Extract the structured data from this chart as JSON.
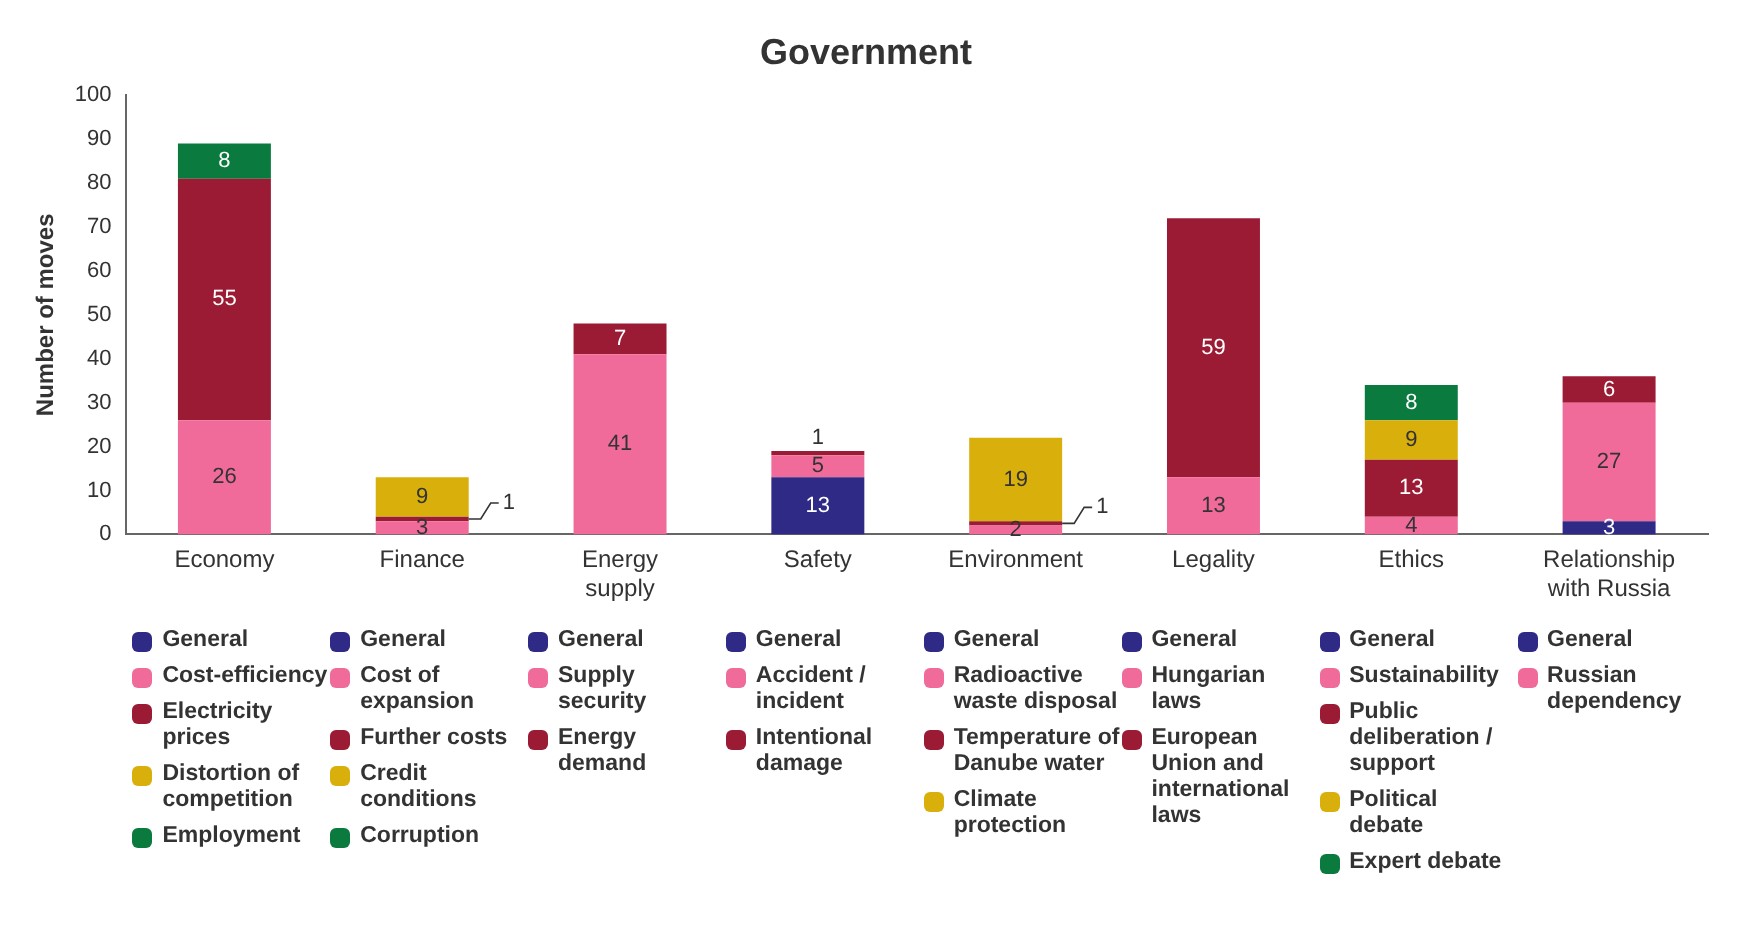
{
  "chart_data": {
    "type": "bar",
    "title": "Government",
    "ylabel": "Number of moves",
    "categories": [
      "Economy",
      "Finance",
      "Energy supply",
      "Safety",
      "Environment",
      "Legality",
      "Ethics",
      "Relationship with Russia"
    ],
    "stacked": true,
    "ylim": [
      0,
      100
    ],
    "yticks": [
      0,
      10,
      20,
      30,
      40,
      50,
      60,
      70,
      80,
      90,
      100
    ],
    "grid": false,
    "legend": "bottom",
    "series": [
      {
        "name": "General",
        "color": "#2e2a85",
        "values": [
          0,
          null,
          null,
          null,
          null,
          null,
          null,
          null
        ],
        "value_labels": [
          null,
          null,
          null,
          null,
          null,
          null,
          null,
          null
        ]
      },
      {
        "name": "Cost-efficiency",
        "color": "#f06b9a",
        "values": [
          26,
          null,
          null,
          null,
          null,
          null,
          null,
          null
        ],
        "value_labels": [
          "26",
          null,
          null,
          null,
          null,
          null,
          null,
          null
        ]
      },
      {
        "name": "Electricity prices",
        "color": "#9b1b35",
        "values": [
          55,
          null,
          null,
          null,
          null,
          null,
          null,
          null
        ],
        "value_labels": [
          "55",
          null,
          null,
          null,
          null,
          null,
          null,
          null
        ]
      },
      {
        "name": "Distortion of competition",
        "color": "#d9b00b",
        "values": [
          0,
          null,
          null,
          null,
          null,
          null,
          null,
          null
        ],
        "value_labels": [
          null,
          null,
          null,
          null,
          null,
          null,
          null,
          null
        ]
      },
      {
        "name": "Employment",
        "color": "#0b7a3e",
        "values": [
          8,
          null,
          null,
          null,
          null,
          null,
          null,
          null
        ],
        "value_labels": [
          "8",
          null,
          null,
          null,
          null,
          null,
          null,
          null
        ]
      },
      {
        "name": "General",
        "color": "#2e2a85",
        "values": [
          null,
          0,
          null,
          null,
          null,
          null,
          null,
          null
        ],
        "value_labels": [
          null,
          null,
          null,
          null,
          null,
          null,
          null,
          null
        ]
      },
      {
        "name": "Cost of expansion",
        "color": "#f06b9a",
        "values": [
          null,
          3,
          null,
          null,
          null,
          null,
          null,
          null
        ],
        "value_labels": [
          null,
          "3",
          null,
          null,
          null,
          null,
          null,
          null
        ]
      },
      {
        "name": "Further costs",
        "color": "#9b1b35",
        "values": [
          null,
          1,
          null,
          null,
          null,
          null,
          null,
          null
        ],
        "value_labels": [
          null,
          "1",
          null,
          null,
          null,
          null,
          null,
          null
        ]
      },
      {
        "name": "Credit conditions",
        "color": "#d9b00b",
        "values": [
          null,
          9,
          null,
          null,
          null,
          null,
          null,
          null
        ],
        "value_labels": [
          null,
          "9",
          null,
          null,
          null,
          null,
          null,
          null
        ]
      },
      {
        "name": "Corruption",
        "color": "#0b7a3e",
        "values": [
          null,
          0,
          null,
          null,
          null,
          null,
          null,
          null
        ],
        "value_labels": [
          null,
          null,
          null,
          null,
          null,
          null,
          null,
          null
        ]
      },
      {
        "name": "General",
        "color": "#2e2a85",
        "values": [
          null,
          null,
          0,
          null,
          null,
          null,
          null,
          null
        ],
        "value_labels": [
          null,
          null,
          null,
          null,
          null,
          null,
          null,
          null
        ]
      },
      {
        "name": "Supply security",
        "color": "#f06b9a",
        "values": [
          null,
          null,
          41,
          null,
          null,
          null,
          null,
          null
        ],
        "value_labels": [
          null,
          null,
          "41",
          null,
          null,
          null,
          null,
          null
        ]
      },
      {
        "name": "Energy demand",
        "color": "#9b1b35",
        "values": [
          null,
          null,
          7,
          null,
          null,
          null,
          null,
          null
        ],
        "value_labels": [
          null,
          null,
          "7",
          null,
          null,
          null,
          null,
          null
        ]
      },
      {
        "name": "General",
        "color": "#2e2a85",
        "values": [
          null,
          null,
          null,
          13,
          null,
          null,
          null,
          null
        ],
        "value_labels": [
          null,
          null,
          null,
          "13",
          null,
          null,
          null,
          null
        ]
      },
      {
        "name": "Accident / incident",
        "color": "#f06b9a",
        "values": [
          null,
          null,
          null,
          5,
          null,
          null,
          null,
          null
        ],
        "value_labels": [
          null,
          null,
          null,
          "5",
          null,
          null,
          null,
          null
        ]
      },
      {
        "name": "Intentional damage",
        "color": "#9b1b35",
        "values": [
          null,
          null,
          null,
          1,
          null,
          null,
          null,
          null
        ],
        "value_labels": [
          null,
          null,
          null,
          "1",
          null,
          null,
          null,
          null
        ]
      },
      {
        "name": "General",
        "color": "#2e2a85",
        "values": [
          null,
          null,
          null,
          null,
          0,
          null,
          null,
          null
        ],
        "value_labels": [
          null,
          null,
          null,
          null,
          null,
          null,
          null,
          null
        ]
      },
      {
        "name": "Radioactive waste disposal",
        "color": "#f06b9a",
        "values": [
          null,
          null,
          null,
          null,
          2,
          null,
          null,
          null
        ],
        "value_labels": [
          null,
          null,
          null,
          null,
          "2",
          null,
          null,
          null
        ]
      },
      {
        "name": "Temperature of Danube water",
        "color": "#9b1b35",
        "values": [
          null,
          null,
          null,
          null,
          1,
          null,
          null,
          null
        ],
        "value_labels": [
          null,
          null,
          null,
          null,
          "1",
          null,
          null,
          null
        ]
      },
      {
        "name": "Climate protection",
        "color": "#d9b00b",
        "values": [
          null,
          null,
          null,
          null,
          19,
          null,
          null,
          null
        ],
        "value_labels": [
          null,
          null,
          null,
          null,
          "19",
          null,
          null,
          null
        ]
      },
      {
        "name": "General",
        "color": "#2e2a85",
        "values": [
          null,
          null,
          null,
          null,
          null,
          0,
          null,
          null
        ],
        "value_labels": [
          null,
          null,
          null,
          null,
          null,
          null,
          null,
          null
        ]
      },
      {
        "name": "Hungarian laws",
        "color": "#f06b9a",
        "values": [
          null,
          null,
          null,
          null,
          null,
          13,
          null,
          null
        ],
        "value_labels": [
          null,
          null,
          null,
          null,
          null,
          "13",
          null,
          null
        ]
      },
      {
        "name": "European Union and international laws",
        "color": "#9b1b35",
        "values": [
          null,
          null,
          null,
          null,
          null,
          59,
          null,
          null
        ],
        "value_labels": [
          null,
          null,
          null,
          null,
          null,
          "59",
          null,
          null
        ]
      },
      {
        "name": "General",
        "color": "#2e2a85",
        "values": [
          null,
          null,
          null,
          null,
          null,
          null,
          0,
          null
        ],
        "value_labels": [
          null,
          null,
          null,
          null,
          null,
          null,
          null,
          null
        ]
      },
      {
        "name": "Sustainability",
        "color": "#f06b9a",
        "values": [
          null,
          null,
          null,
          null,
          null,
          null,
          4,
          null
        ],
        "value_labels": [
          null,
          null,
          null,
          null,
          null,
          null,
          "4",
          null
        ]
      },
      {
        "name": "Public deliberation / support",
        "color": "#9b1b35",
        "values": [
          null,
          null,
          null,
          null,
          null,
          null,
          13,
          null
        ],
        "value_labels": [
          null,
          null,
          null,
          null,
          null,
          null,
          "13",
          null
        ]
      },
      {
        "name": "Political debate",
        "color": "#d9b00b",
        "values": [
          null,
          null,
          null,
          null,
          null,
          null,
          9,
          null
        ],
        "value_labels": [
          null,
          null,
          null,
          null,
          null,
          null,
          "9",
          null
        ]
      },
      {
        "name": "Expert debate",
        "color": "#0b7a3e",
        "values": [
          null,
          null,
          null,
          null,
          null,
          null,
          8,
          null
        ],
        "value_labels": [
          null,
          null,
          null,
          null,
          null,
          null,
          "8",
          null
        ]
      },
      {
        "name": "General",
        "color": "#2e2a85",
        "values": [
          null,
          null,
          null,
          null,
          null,
          null,
          null,
          3
        ],
        "value_labels": [
          null,
          null,
          null,
          null,
          null,
          null,
          null,
          "3"
        ]
      },
      {
        "name": "Russian dependency",
        "color": "#f06b9a",
        "values": [
          null,
          null,
          null,
          null,
          null,
          null,
          null,
          27
        ],
        "value_labels": [
          null,
          null,
          null,
          null,
          null,
          null,
          null,
          "27"
        ]
      },
      {
        "color": "#9b1b35",
        "values": [
          null,
          null,
          null,
          null,
          null,
          null,
          null,
          6
        ],
        "value_labels": [
          null,
          null,
          null,
          null,
          null,
          null,
          null,
          "6"
        ]
      }
    ]
  }
}
